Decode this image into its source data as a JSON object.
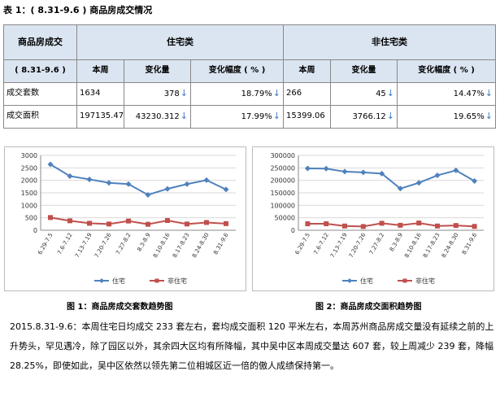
{
  "caption": "表 1：( 8.31-9.6 ) 商品房成交情况",
  "table": {
    "title_cell": "商品房成交",
    "group_residential": "住宅类",
    "group_nonresidential": "非住宅类",
    "period_cell": "( 8.31-9.6 )",
    "col_week": "本周",
    "col_change": "变化量",
    "col_change_pct": "变化幅度 ( % )",
    "rows": [
      {
        "label": "成交套数",
        "res_week": "1634",
        "res_change": "378",
        "res_pct": "18.79%",
        "non_week": "266",
        "non_change": "45",
        "non_pct": "14.47%"
      },
      {
        "label": "成交面积",
        "res_week": "197135.47",
        "res_change": "43230.312",
        "res_pct": "17.99%",
        "non_week": "15399.06",
        "non_change": "3766.12",
        "non_pct": "19.65%"
      }
    ],
    "down_arrow": "↓"
  },
  "chart_data": [
    {
      "type": "line",
      "categories": [
        "6.29-7.5",
        "7.6-7.12",
        "7.13-7.19",
        "7.20-7.26",
        "7.27-8.2",
        "8.3-8.9",
        "8.10-8.16",
        "8.17-8.23",
        "8.24-8.30",
        "8.31-9.6"
      ],
      "series": [
        {
          "name": "住宅",
          "color": "#4f81bd",
          "marker": "diamond",
          "values": [
            2640,
            2170,
            2040,
            1900,
            1850,
            1420,
            1660,
            1850,
            2010,
            1634
          ]
        },
        {
          "name": "非住宅",
          "color": "#c0504d",
          "marker": "square",
          "values": [
            510,
            380,
            280,
            250,
            370,
            240,
            390,
            250,
            311,
            266
          ]
        }
      ],
      "ylim": [
        0,
        3000
      ],
      "yticks": [
        "0",
        "500",
        "1000",
        "1500",
        "2000",
        "2500",
        "3000"
      ],
      "legend_position": "bottom",
      "grid": true
    },
    {
      "type": "line",
      "categories": [
        "6.29-7.5",
        "7.6-7.12",
        "7.13-7.19",
        "7.20-7.26",
        "7.27-8.2",
        "8.3-8.9",
        "8.10-8.16",
        "8.17-8.23",
        "8.24-8.30",
        "8.31-9.6"
      ],
      "series": [
        {
          "name": "住宅",
          "color": "#4f81bd",
          "marker": "diamond",
          "values": [
            248000,
            247000,
            235000,
            232000,
            227000,
            167000,
            190000,
            220000,
            240000,
            197135
          ]
        },
        {
          "name": "非住宅",
          "color": "#c0504d",
          "marker": "square",
          "values": [
            26000,
            26000,
            17000,
            15000,
            28000,
            20000,
            29000,
            17000,
            19000,
            15399
          ]
        }
      ],
      "ylim": [
        0,
        300000
      ],
      "yticks": [
        "0",
        "50000",
        "100000",
        "150000",
        "200000",
        "250000",
        "300000"
      ],
      "legend_position": "bottom",
      "grid": true
    }
  ],
  "fig_caption_1": "图 1：商品房成交套数趋势图",
  "fig_caption_2": "图 2：商品房成交面积趋势图",
  "paragraph": "2015.8.31-9.6：本周住宅日均成交 233 套左右，套均成交面积 120 平米左右，本周苏州商品房成交量没有延续之前的上升势头，罕见遇冷，除了园区以外，其余四大区均有所降幅，其中吴中区本周成交量达 607 套，较上周减少 239 套，降幅 28.25%，即使如此，吴中区依然以领先第二位相城区近一倍的傲人成绩保持第一。"
}
